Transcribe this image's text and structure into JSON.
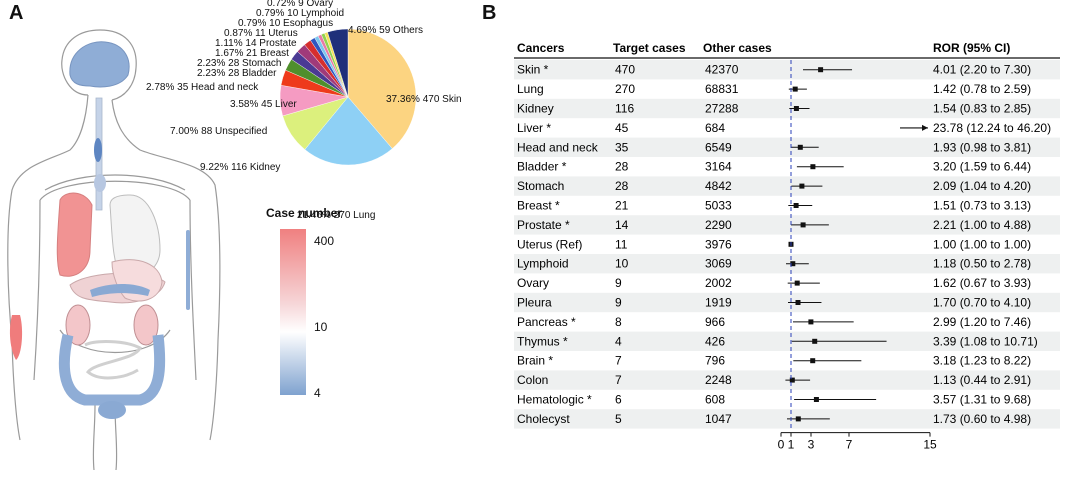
{
  "panel_a": {
    "letter": "A",
    "legend": {
      "title": "Case number",
      "ticks": [
        "400",
        "10",
        "4"
      ]
    },
    "colors": {
      "high": "#f08080",
      "mid": "#ffffff",
      "low": "#7fa2cf"
    }
  },
  "panel_b": {
    "letter": "B",
    "headers": {
      "cancers": "Cancers",
      "target": "Target cases",
      "other": "Other cases",
      "ror": "ROR (95% CI)"
    }
  },
  "chart_data": [
    {
      "type": "pie",
      "slices": [
        {
          "label": "Skin",
          "cases": 470,
          "percent": "37.36%",
          "color": "#fcd481"
        },
        {
          "label": "Lung",
          "cases": 270,
          "percent": "21.46%",
          "color": "#8ed0f5"
        },
        {
          "label": "Kidney",
          "cases": 116,
          "percent": "9.22%",
          "color": "#dcf07d"
        },
        {
          "label": "Unspecified",
          "cases": 88,
          "percent": "7.00%",
          "color": "#f59bc2"
        },
        {
          "label": "Liver",
          "cases": 45,
          "percent": "3.58%",
          "color": "#ee3a1b"
        },
        {
          "label": "Head and neck",
          "cases": 35,
          "percent": "2.78%",
          "color": "#4f8f2c"
        },
        {
          "label": "Bladder",
          "cases": 28,
          "percent": "2.23%",
          "color": "#4b3a94"
        },
        {
          "label": "Stomach",
          "cases": 28,
          "percent": "2.23%",
          "color": "#a03a7a"
        },
        {
          "label": "Breast",
          "cases": 21,
          "percent": "1.67%",
          "color": "#d62e2e"
        },
        {
          "label": "Prostate",
          "cases": 14,
          "percent": "1.11%",
          "color": "#2f56c0"
        },
        {
          "label": "Uterus",
          "cases": 11,
          "percent": "0.87%",
          "color": "#7cc7ee"
        },
        {
          "label": "Esophagus",
          "cases": 10,
          "percent": "0.79%",
          "color": "#e87aa6"
        },
        {
          "label": "Lymphoid",
          "cases": 10,
          "percent": "0.79%",
          "color": "#92d14f"
        },
        {
          "label": "Ovary",
          "cases": 9,
          "percent": "0.72%",
          "color": "#f4e25a"
        },
        {
          "label": "Others",
          "cases": 59,
          "percent": "4.69%",
          "color": "#1f2f7a"
        }
      ]
    },
    {
      "type": "forest",
      "x_ticks": [
        0,
        1,
        3,
        7,
        15
      ],
      "xlim": [
        0,
        15
      ],
      "reference_line": 1,
      "rows": [
        {
          "cancer": "Skin *",
          "target": 470,
          "other": 42370,
          "ror": 4.01,
          "lo": 2.2,
          "hi": 7.3,
          "text": "4.01 (2.20 to 7.30)"
        },
        {
          "cancer": "Lung",
          "target": 270,
          "other": 68831,
          "ror": 1.42,
          "lo": 0.78,
          "hi": 2.59,
          "text": "1.42 (0.78 to 2.59)"
        },
        {
          "cancer": "Kidney",
          "target": 116,
          "other": 27288,
          "ror": 1.54,
          "lo": 0.83,
          "hi": 2.85,
          "text": "1.54 (0.83 to 2.85)"
        },
        {
          "cancer": "Liver *",
          "target": 45,
          "other": 684,
          "ror": 23.78,
          "lo": 12.24,
          "hi": 46.2,
          "text": "23.78 (12.24 to 46.20)",
          "offscale": true
        },
        {
          "cancer": "Head and neck",
          "target": 35,
          "other": 6549,
          "ror": 1.93,
          "lo": 0.98,
          "hi": 3.81,
          "text": "1.93 (0.98 to 3.81)"
        },
        {
          "cancer": "Bladder *",
          "target": 28,
          "other": 3164,
          "ror": 3.2,
          "lo": 1.59,
          "hi": 6.44,
          "text": "3.20 (1.59 to 6.44)"
        },
        {
          "cancer": "Stomach",
          "target": 28,
          "other": 4842,
          "ror": 2.09,
          "lo": 1.04,
          "hi": 4.2,
          "text": "2.09 (1.04 to 4.20)"
        },
        {
          "cancer": "Breast *",
          "target": 21,
          "other": 5033,
          "ror": 1.51,
          "lo": 0.73,
          "hi": 3.13,
          "text": "1.51 (0.73 to 3.13)"
        },
        {
          "cancer": "Prostate *",
          "target": 14,
          "other": 2290,
          "ror": 2.21,
          "lo": 1.0,
          "hi": 4.88,
          "text": "2.21 (1.00 to 4.88)"
        },
        {
          "cancer": "Uterus  (Ref)",
          "target": 11,
          "other": 3976,
          "ror": 1.0,
          "lo": 1.0,
          "hi": 1.0,
          "text": "1.00 (1.00 to 1.00)"
        },
        {
          "cancer": "Lymphoid",
          "target": 10,
          "other": 3069,
          "ror": 1.18,
          "lo": 0.5,
          "hi": 2.78,
          "text": "1.18 (0.50 to 2.78)"
        },
        {
          "cancer": "Ovary",
          "target": 9,
          "other": 2002,
          "ror": 1.62,
          "lo": 0.67,
          "hi": 3.93,
          "text": "1.62 (0.67 to 3.93)"
        },
        {
          "cancer": "Pleura",
          "target": 9,
          "other": 1919,
          "ror": 1.7,
          "lo": 0.7,
          "hi": 4.1,
          "text": "1.70 (0.70 to 4.10)"
        },
        {
          "cancer": "Pancreas *",
          "target": 8,
          "other": 966,
          "ror": 2.99,
          "lo": 1.2,
          "hi": 7.46,
          "text": "2.99 (1.20 to 7.46)"
        },
        {
          "cancer": "Thymus *",
          "target": 4,
          "other": 426,
          "ror": 3.39,
          "lo": 1.08,
          "hi": 10.71,
          "text": "3.39 (1.08 to 10.71)"
        },
        {
          "cancer": "Brain *",
          "target": 7,
          "other": 796,
          "ror": 3.18,
          "lo": 1.23,
          "hi": 8.22,
          "text": "3.18 (1.23 to 8.22)"
        },
        {
          "cancer": "Colon",
          "target": 7,
          "other": 2248,
          "ror": 1.13,
          "lo": 0.44,
          "hi": 2.91,
          "text": "1.13 (0.44 to 2.91)"
        },
        {
          "cancer": "Hematologic *",
          "target": 6,
          "other": 608,
          "ror": 3.57,
          "lo": 1.31,
          "hi": 9.68,
          "text": "3.57 (1.31 to 9.68)"
        },
        {
          "cancer": "Cholecyst",
          "target": 5,
          "other": 1047,
          "ror": 1.73,
          "lo": 0.6,
          "hi": 4.98,
          "text": "1.73 (0.60 to 4.98)"
        }
      ]
    }
  ]
}
